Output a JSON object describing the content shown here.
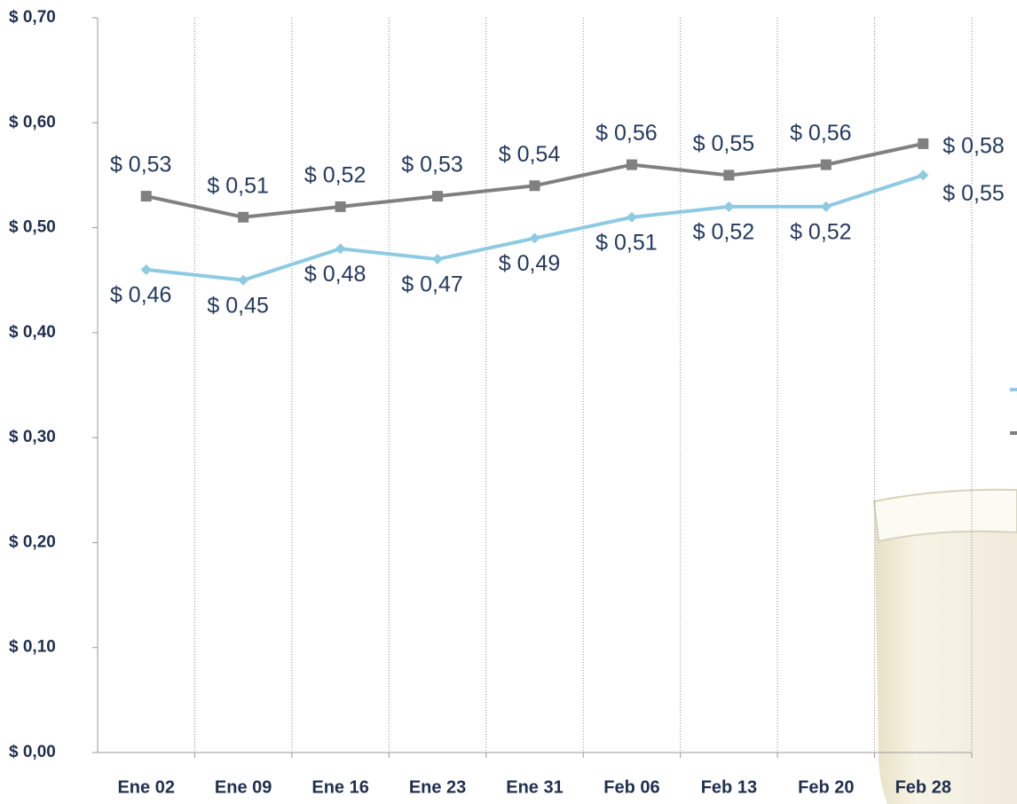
{
  "chart_data": {
    "type": "line",
    "categories": [
      "Ene 02",
      "Ene 09",
      "Ene 16",
      "Ene 23",
      "Ene 31",
      "Feb 06",
      "Feb 13",
      "Feb 20",
      "Feb 28"
    ],
    "series": [
      {
        "color": "#808080",
        "marker": "square",
        "values": [
          0.53,
          0.51,
          0.52,
          0.53,
          0.54,
          0.56,
          0.55,
          0.56,
          0.58
        ],
        "value_labels": [
          "$ 0,53",
          "$ 0,51",
          "$ 0,52",
          "$ 0,53",
          "$ 0,54",
          "$ 0,56",
          "$ 0,55",
          "$ 0,56",
          "$ 0,58"
        ]
      },
      {
        "color": "#8ecae2",
        "marker": "diamond",
        "values": [
          0.46,
          0.45,
          0.48,
          0.47,
          0.49,
          0.51,
          0.52,
          0.52,
          0.55
        ],
        "value_labels": [
          "$ 0,46",
          "$ 0,45",
          "$ 0,48",
          "$ 0,47",
          "$ 0,49",
          "$ 0,51",
          "$ 0,52",
          "$ 0,52",
          "$ 0,55"
        ]
      }
    ],
    "ylim": [
      0,
      0.7
    ],
    "yticks": [
      {
        "value": 0,
        "label": "$ 0,00"
      },
      {
        "value": 0.1,
        "label": "$ 0,10"
      },
      {
        "value": 0.2,
        "label": "$ 0,20"
      },
      {
        "value": 0.3,
        "label": "$ 0,30"
      },
      {
        "value": 0.4,
        "label": "$ 0,40"
      },
      {
        "value": 0.5,
        "label": "$ 0,50"
      },
      {
        "value": 0.6,
        "label": "$ 0,60"
      },
      {
        "value": 0.7,
        "label": "$ 0,70"
      }
    ],
    "grid": true
  }
}
